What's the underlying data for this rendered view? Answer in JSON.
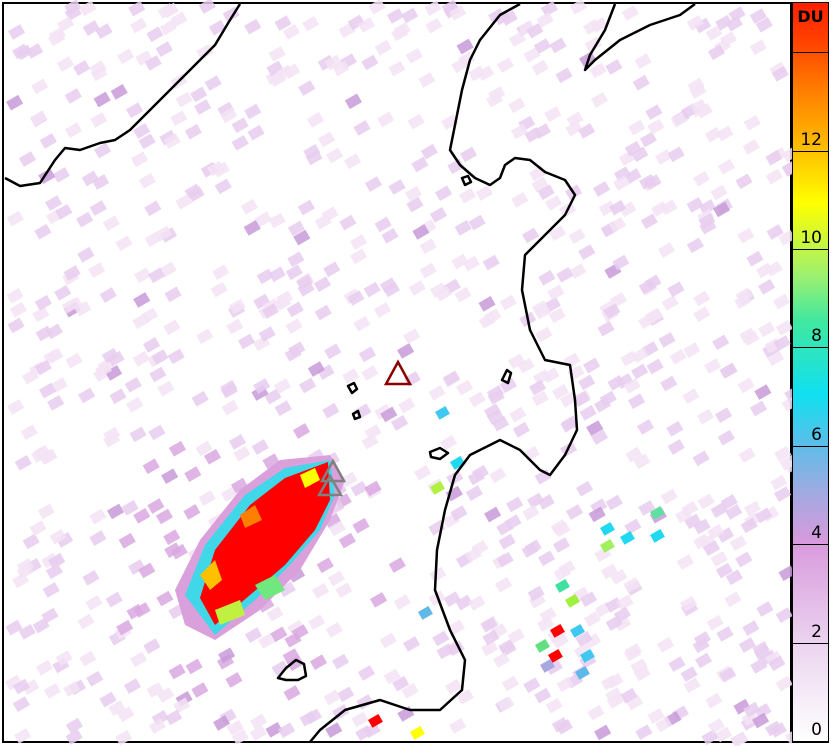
{
  "colorbar": {
    "unit": "DU",
    "ticks": [
      "0",
      "2",
      "4",
      "6",
      "8",
      "10",
      "12",
      ""
    ],
    "tick_values": [
      0,
      2,
      4,
      6,
      8,
      10,
      12,
      14
    ],
    "range": [
      0,
      15
    ],
    "colors": [
      "#ffffff",
      "#f0dcf0",
      "#d9a0dc",
      "#a8a8e0",
      "#60b8e8",
      "#10dcf0",
      "#40e8a0",
      "#a0f060",
      "#ffff00",
      "#ffc000",
      "#ff8000",
      "#ff4000",
      "#ff0000"
    ]
  },
  "volcanoes": [
    {
      "name": "volcano-dark-red",
      "color": "#8b0000"
    },
    {
      "name": "volcano-gray-1",
      "color": "#808080"
    },
    {
      "name": "volcano-gray-2",
      "color": "#808080"
    }
  ]
}
